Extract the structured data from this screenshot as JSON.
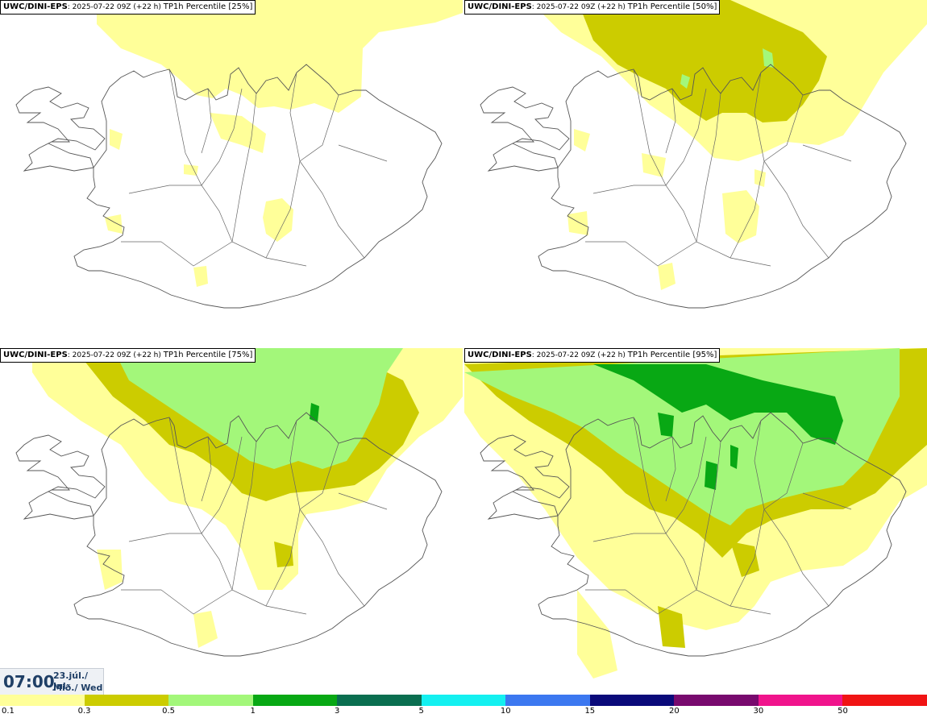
{
  "panels": [
    {
      "model": "UWC/DINI-EPS",
      "run": "2025-07-22 09Z (+22 h)",
      "label": "TP1h Percentile [25%]"
    },
    {
      "model": "UWC/DINI-EPS",
      "run": "2025-07-22 09Z (+22 h)",
      "label": "TP1h Percentile [50%]"
    },
    {
      "model": "UWC/DINI-EPS",
      "run": "2025-07-22 09Z (+22 h)",
      "label": "TP1h Percentile [75%]"
    },
    {
      "model": "UWC/DINI-EPS",
      "run": "2025-07-22 09Z (+22 h)",
      "label": "TP1h Percentile [95%]"
    }
  ],
  "valid_time": {
    "time": "07:00",
    "date_line1": "23.júl./ Jul",
    "date_line2": "Mið./ Wed"
  },
  "colorbar": {
    "ticks": [
      "0.1",
      "0.3",
      "0.5",
      "1",
      "3",
      "5",
      "10",
      "15",
      "20",
      "30",
      "50"
    ],
    "colors": [
      "#ffff99",
      "#cccc00",
      "#a3f77a",
      "#08a814",
      "#0a6e50",
      "#14f0f0",
      "#3c78f0",
      "#0a0a7a",
      "#780a6e",
      "#f0148c",
      "#f01414"
    ]
  },
  "colors": {
    "coast": "#555555",
    "pale_yellow": "#ffff99",
    "olive": "#cccc00",
    "light_green": "#a3f77a",
    "green": "#08a814"
  }
}
